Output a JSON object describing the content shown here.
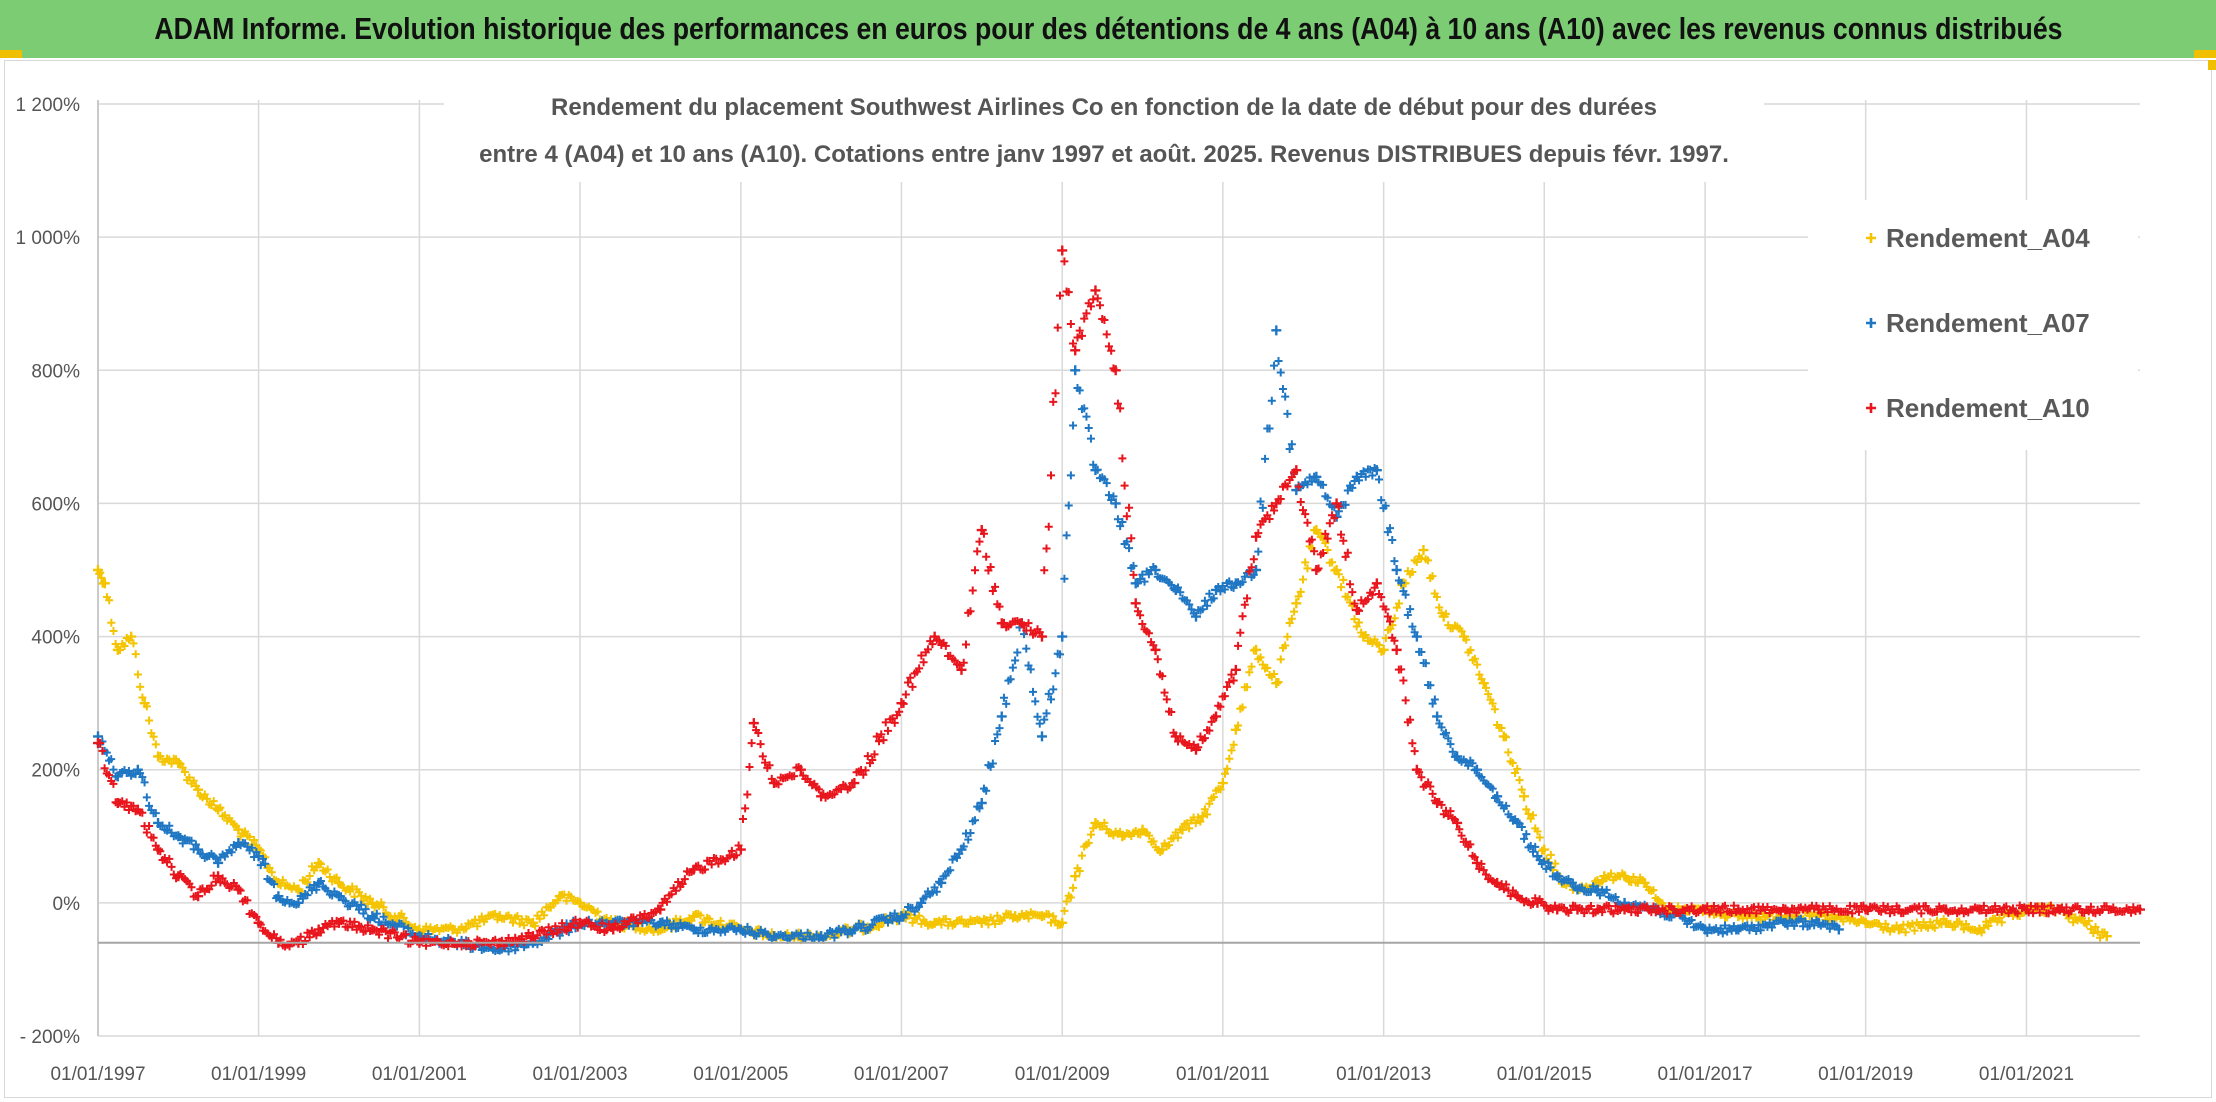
{
  "header": {
    "title": "ADAM Informe. Evolution historique des performances en euros pour des détentions de 4 ans (A04) à 10 ans (A10) avec les revenus connus distribués"
  },
  "chart_data": {
    "type": "scatter",
    "title_line1": "Rendement du placement Southwest Airlines Co en fonction de la date de début pour des durées",
    "title_line2": "entre 4 (A04) et 10 ans (A10). Cotations entre janv 1997 et août. 2025. Revenus DISTRIBUES depuis févr. 1997.",
    "xlabel": "",
    "ylabel": "",
    "x_range": [
      "1997-01-01",
      "2022-06-01"
    ],
    "ylim": [
      -200,
      1200
    ],
    "y_ticks": [
      -200,
      0,
      200,
      400,
      600,
      800,
      1000,
      1200
    ],
    "y_tick_labels": [
      "- 200%",
      "0%",
      "200%",
      "400%",
      "600%",
      "800%",
      "1 000%",
      "1 200%"
    ],
    "x_ticks": [
      "1997-01-01",
      "1999-01-01",
      "2001-01-01",
      "2003-01-01",
      "2005-01-01",
      "2007-01-01",
      "2009-01-01",
      "2011-01-01",
      "2013-01-01",
      "2015-01-01",
      "2017-01-01",
      "2019-01-01",
      "2021-01-01"
    ],
    "x_tick_labels": [
      "01/01/1997",
      "01/01/1999",
      "01/01/2001",
      "01/01/2003",
      "01/01/2005",
      "01/01/2007",
      "01/01/2009",
      "01/01/2011",
      "01/01/2013",
      "01/01/2015",
      "01/01/2017",
      "01/01/2019",
      "01/01/2021"
    ],
    "reference_line_y": -60,
    "grid": true,
    "legend_position": "right",
    "marker": "+",
    "series": [
      {
        "name": "Rendement_A04",
        "color": "#f5c400",
        "x": [
          "1997-01-01",
          "1997-02-01",
          "1997-04-01",
          "1997-06-01",
          "1997-08-01",
          "1997-10-01",
          "1998-01-01",
          "1998-04-01",
          "1998-07-01",
          "1998-10-01",
          "1999-01-01",
          "1999-04-01",
          "1999-07-01",
          "1999-10-01",
          "2000-01-01",
          "2000-06-01",
          "2001-01-01",
          "2001-06-01",
          "2002-01-01",
          "2002-06-01",
          "2002-10-01",
          "2003-01-01",
          "2003-06-01",
          "2004-01-01",
          "2004-06-01",
          "2005-01-01",
          "2005-06-01",
          "2006-01-01",
          "2006-06-01",
          "2007-01-01",
          "2007-06-01",
          "2008-01-01",
          "2008-06-01",
          "2008-10-01",
          "2009-01-01",
          "2009-03-01",
          "2009-06-01",
          "2009-10-01",
          "2010-01-01",
          "2010-04-01",
          "2010-07-01",
          "2010-10-01",
          "2011-01-01",
          "2011-03-01",
          "2011-06-01",
          "2011-09-01",
          "2011-12-01",
          "2012-03-01",
          "2012-06-01",
          "2012-10-01",
          "2013-01-01",
          "2013-04-01",
          "2013-07-01",
          "2013-10-01",
          "2014-01-01",
          "2014-04-01",
          "2014-07-01",
          "2014-10-01",
          "2015-01-01",
          "2015-04-01",
          "2015-07-01",
          "2015-10-01",
          "2016-01-01",
          "2016-04-01",
          "2016-07-01",
          "2016-10-01",
          "2017-01-01",
          "2017-06-01",
          "2018-01-01",
          "2018-06-01",
          "2019-01-01",
          "2019-06-01",
          "2020-01-01",
          "2020-06-01",
          "2021-01-01",
          "2021-06-01",
          "2022-01-01"
        ],
        "y": [
          500,
          480,
          380,
          400,
          300,
          220,
          210,
          170,
          140,
          110,
          80,
          30,
          20,
          60,
          30,
          0,
          -40,
          -40,
          -20,
          -30,
          10,
          0,
          -30,
          -40,
          -20,
          -40,
          -50,
          -50,
          -40,
          -20,
          -30,
          -30,
          -20,
          -20,
          -30,
          40,
          120,
          100,
          110,
          80,
          110,
          130,
          180,
          260,
          380,
          330,
          450,
          560,
          500,
          400,
          380,
          480,
          530,
          430,
          400,
          330,
          250,
          160,
          80,
          30,
          20,
          40,
          40,
          30,
          -10,
          -10,
          -10,
          -20,
          -20,
          -20,
          -30,
          -40,
          -30,
          -40,
          -10,
          -10,
          -50
        ]
      },
      {
        "name": "Rendement_A07",
        "color": "#1f77c4",
        "x": [
          "1997-01-01",
          "1997-04-01",
          "1997-07-01",
          "1997-10-01",
          "1998-01-01",
          "1998-04-01",
          "1998-07-01",
          "1998-10-01",
          "1999-01-01",
          "1999-04-01",
          "1999-07-01",
          "1999-10-01",
          "2000-01-01",
          "2000-06-01",
          "2001-01-01",
          "2001-06-01",
          "2002-01-01",
          "2002-06-01",
          "2003-01-01",
          "2003-06-01",
          "2004-01-01",
          "2004-06-01",
          "2005-01-01",
          "2005-06-01",
          "2006-01-01",
          "2006-06-01",
          "2007-01-01",
          "2007-04-01",
          "2007-07-01",
          "2007-10-01",
          "2008-01-01",
          "2008-04-01",
          "2008-07-01",
          "2008-10-01",
          "2009-01-01",
          "2009-03-01",
          "2009-06-01",
          "2009-09-01",
          "2009-12-01",
          "2010-03-01",
          "2010-06-01",
          "2010-09-01",
          "2010-12-01",
          "2011-03-01",
          "2011-06-01",
          "2011-09-01",
          "2011-12-01",
          "2012-03-01",
          "2012-06-01",
          "2012-09-01",
          "2012-12-01",
          "2013-03-01",
          "2013-06-01",
          "2013-09-01",
          "2013-12-01",
          "2014-03-01",
          "2014-06-01",
          "2014-09-01",
          "2014-12-01",
          "2015-03-01",
          "2015-06-01",
          "2015-09-01",
          "2016-01-01",
          "2016-06-01",
          "2017-01-01",
          "2017-06-01",
          "2018-01-01",
          "2018-06-01",
          "2018-09-01"
        ],
        "y": [
          250,
          190,
          200,
          120,
          100,
          80,
          60,
          90,
          70,
          10,
          0,
          30,
          10,
          -20,
          -50,
          -60,
          -70,
          -60,
          -30,
          -30,
          -30,
          -40,
          -40,
          -50,
          -50,
          -40,
          -20,
          0,
          30,
          80,
          150,
          280,
          420,
          250,
          400,
          800,
          650,
          600,
          480,
          500,
          470,
          430,
          470,
          480,
          500,
          860,
          620,
          640,
          580,
          640,
          650,
          500,
          400,
          280,
          220,
          200,
          160,
          120,
          70,
          40,
          20,
          20,
          0,
          -10,
          -40,
          -40,
          -30,
          -30,
          -40
        ]
      },
      {
        "name": "Rendement_A10",
        "color": "#e8161c",
        "x": [
          "1997-01-01",
          "1997-04-01",
          "1997-07-01",
          "1997-10-01",
          "1998-01-01",
          "1998-04-01",
          "1998-07-01",
          "1998-10-01",
          "1999-01-01",
          "1999-04-01",
          "1999-07-01",
          "1999-10-01",
          "2000-01-01",
          "2000-06-01",
          "2001-01-01",
          "2001-06-01",
          "2002-01-01",
          "2002-06-01",
          "2003-01-01",
          "2003-06-01",
          "2004-01-01",
          "2004-06-01",
          "2005-01-01",
          "2005-03-01",
          "2005-06-01",
          "2005-10-01",
          "2006-01-01",
          "2006-06-01",
          "2007-01-01",
          "2007-06-01",
          "2007-10-01",
          "2008-01-01",
          "2008-04-01",
          "2008-07-01",
          "2008-10-01",
          "2009-01-01",
          "2009-03-01",
          "2009-06-01",
          "2009-09-01",
          "2009-12-01",
          "2010-03-01",
          "2010-06-01",
          "2010-09-01",
          "2010-12-01",
          "2011-03-01",
          "2011-06-01",
          "2011-09-01",
          "2011-12-01",
          "2012-03-01",
          "2012-06-01",
          "2012-09-01",
          "2012-12-01",
          "2013-03-01",
          "2013-06-01",
          "2013-09-01",
          "2013-12-01",
          "2014-03-01",
          "2014-06-01",
          "2014-09-01",
          "2014-12-01",
          "2015-03-01",
          "2015-06-01",
          "2015-09-01",
          "2016-01-01",
          "2016-06-01",
          "2017-01-01",
          "2017-06-01",
          "2018-01-01",
          "2018-06-01",
          "2019-01-01",
          "2019-06-01",
          "2020-01-01",
          "2020-06-01",
          "2021-01-01",
          "2021-06-01",
          "2022-06-01"
        ],
        "y": [
          240,
          150,
          140,
          80,
          40,
          10,
          40,
          20,
          -30,
          -60,
          -60,
          -40,
          -30,
          -40,
          -60,
          -60,
          -60,
          -50,
          -30,
          -40,
          -10,
          50,
          80,
          270,
          180,
          200,
          160,
          180,
          300,
          400,
          350,
          560,
          420,
          420,
          400,
          980,
          830,
          920,
          800,
          450,
          380,
          250,
          230,
          280,
          350,
          550,
          600,
          650,
          500,
          600,
          440,
          480,
          380,
          200,
          150,
          120,
          60,
          30,
          10,
          0,
          -10,
          -10,
          -10,
          -10,
          -10,
          -10,
          -10,
          -10,
          -10,
          -10,
          -10,
          -10,
          -10,
          -10,
          -10,
          -10
        ]
      }
    ]
  }
}
